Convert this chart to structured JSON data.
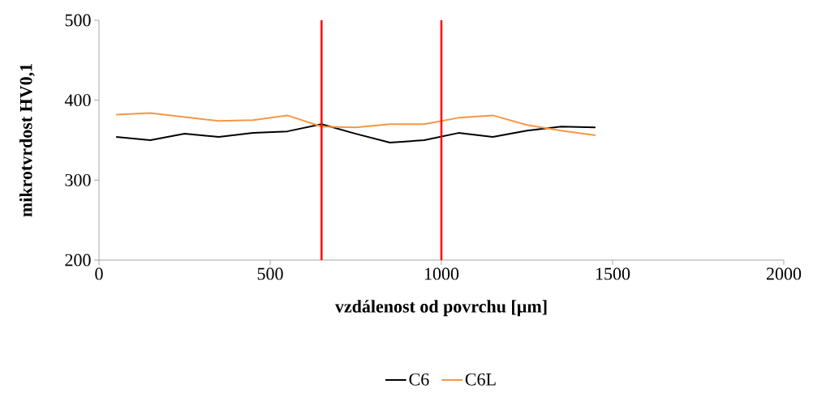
{
  "chart_data": {
    "type": "line",
    "xlabel": "vzdálenost od povrchu [µm]",
    "ylabel": "mikrotvrdost HV0,1",
    "x": [
      50,
      150,
      250,
      350,
      450,
      550,
      650,
      750,
      850,
      950,
      1050,
      1150,
      1250,
      1350,
      1450
    ],
    "series": [
      {
        "name": "C6",
        "color": "#000000",
        "values": [
          354,
          350,
          358,
          354,
          359,
          361,
          370,
          358,
          347,
          350,
          359,
          354,
          362,
          367,
          366
        ]
      },
      {
        "name": "C6L",
        "color": "#f79646",
        "values": [
          382,
          384,
          379,
          374,
          375,
          381,
          367,
          366,
          370,
          370,
          378,
          381,
          369,
          362,
          356
        ]
      }
    ],
    "xlim": [
      0,
      2000
    ],
    "xticks": [
      0,
      500,
      1000,
      1500,
      2000
    ],
    "ylim": [
      200,
      500
    ],
    "yticks": [
      200,
      300,
      400,
      500
    ],
    "ref_lines": [
      {
        "axis": "x",
        "value": 650,
        "color": "#ff0000"
      },
      {
        "axis": "x",
        "value": 1000,
        "color": "#ff0000"
      }
    ],
    "legend": "bottom",
    "grid": false,
    "marker": "none",
    "line_style": "solid"
  }
}
